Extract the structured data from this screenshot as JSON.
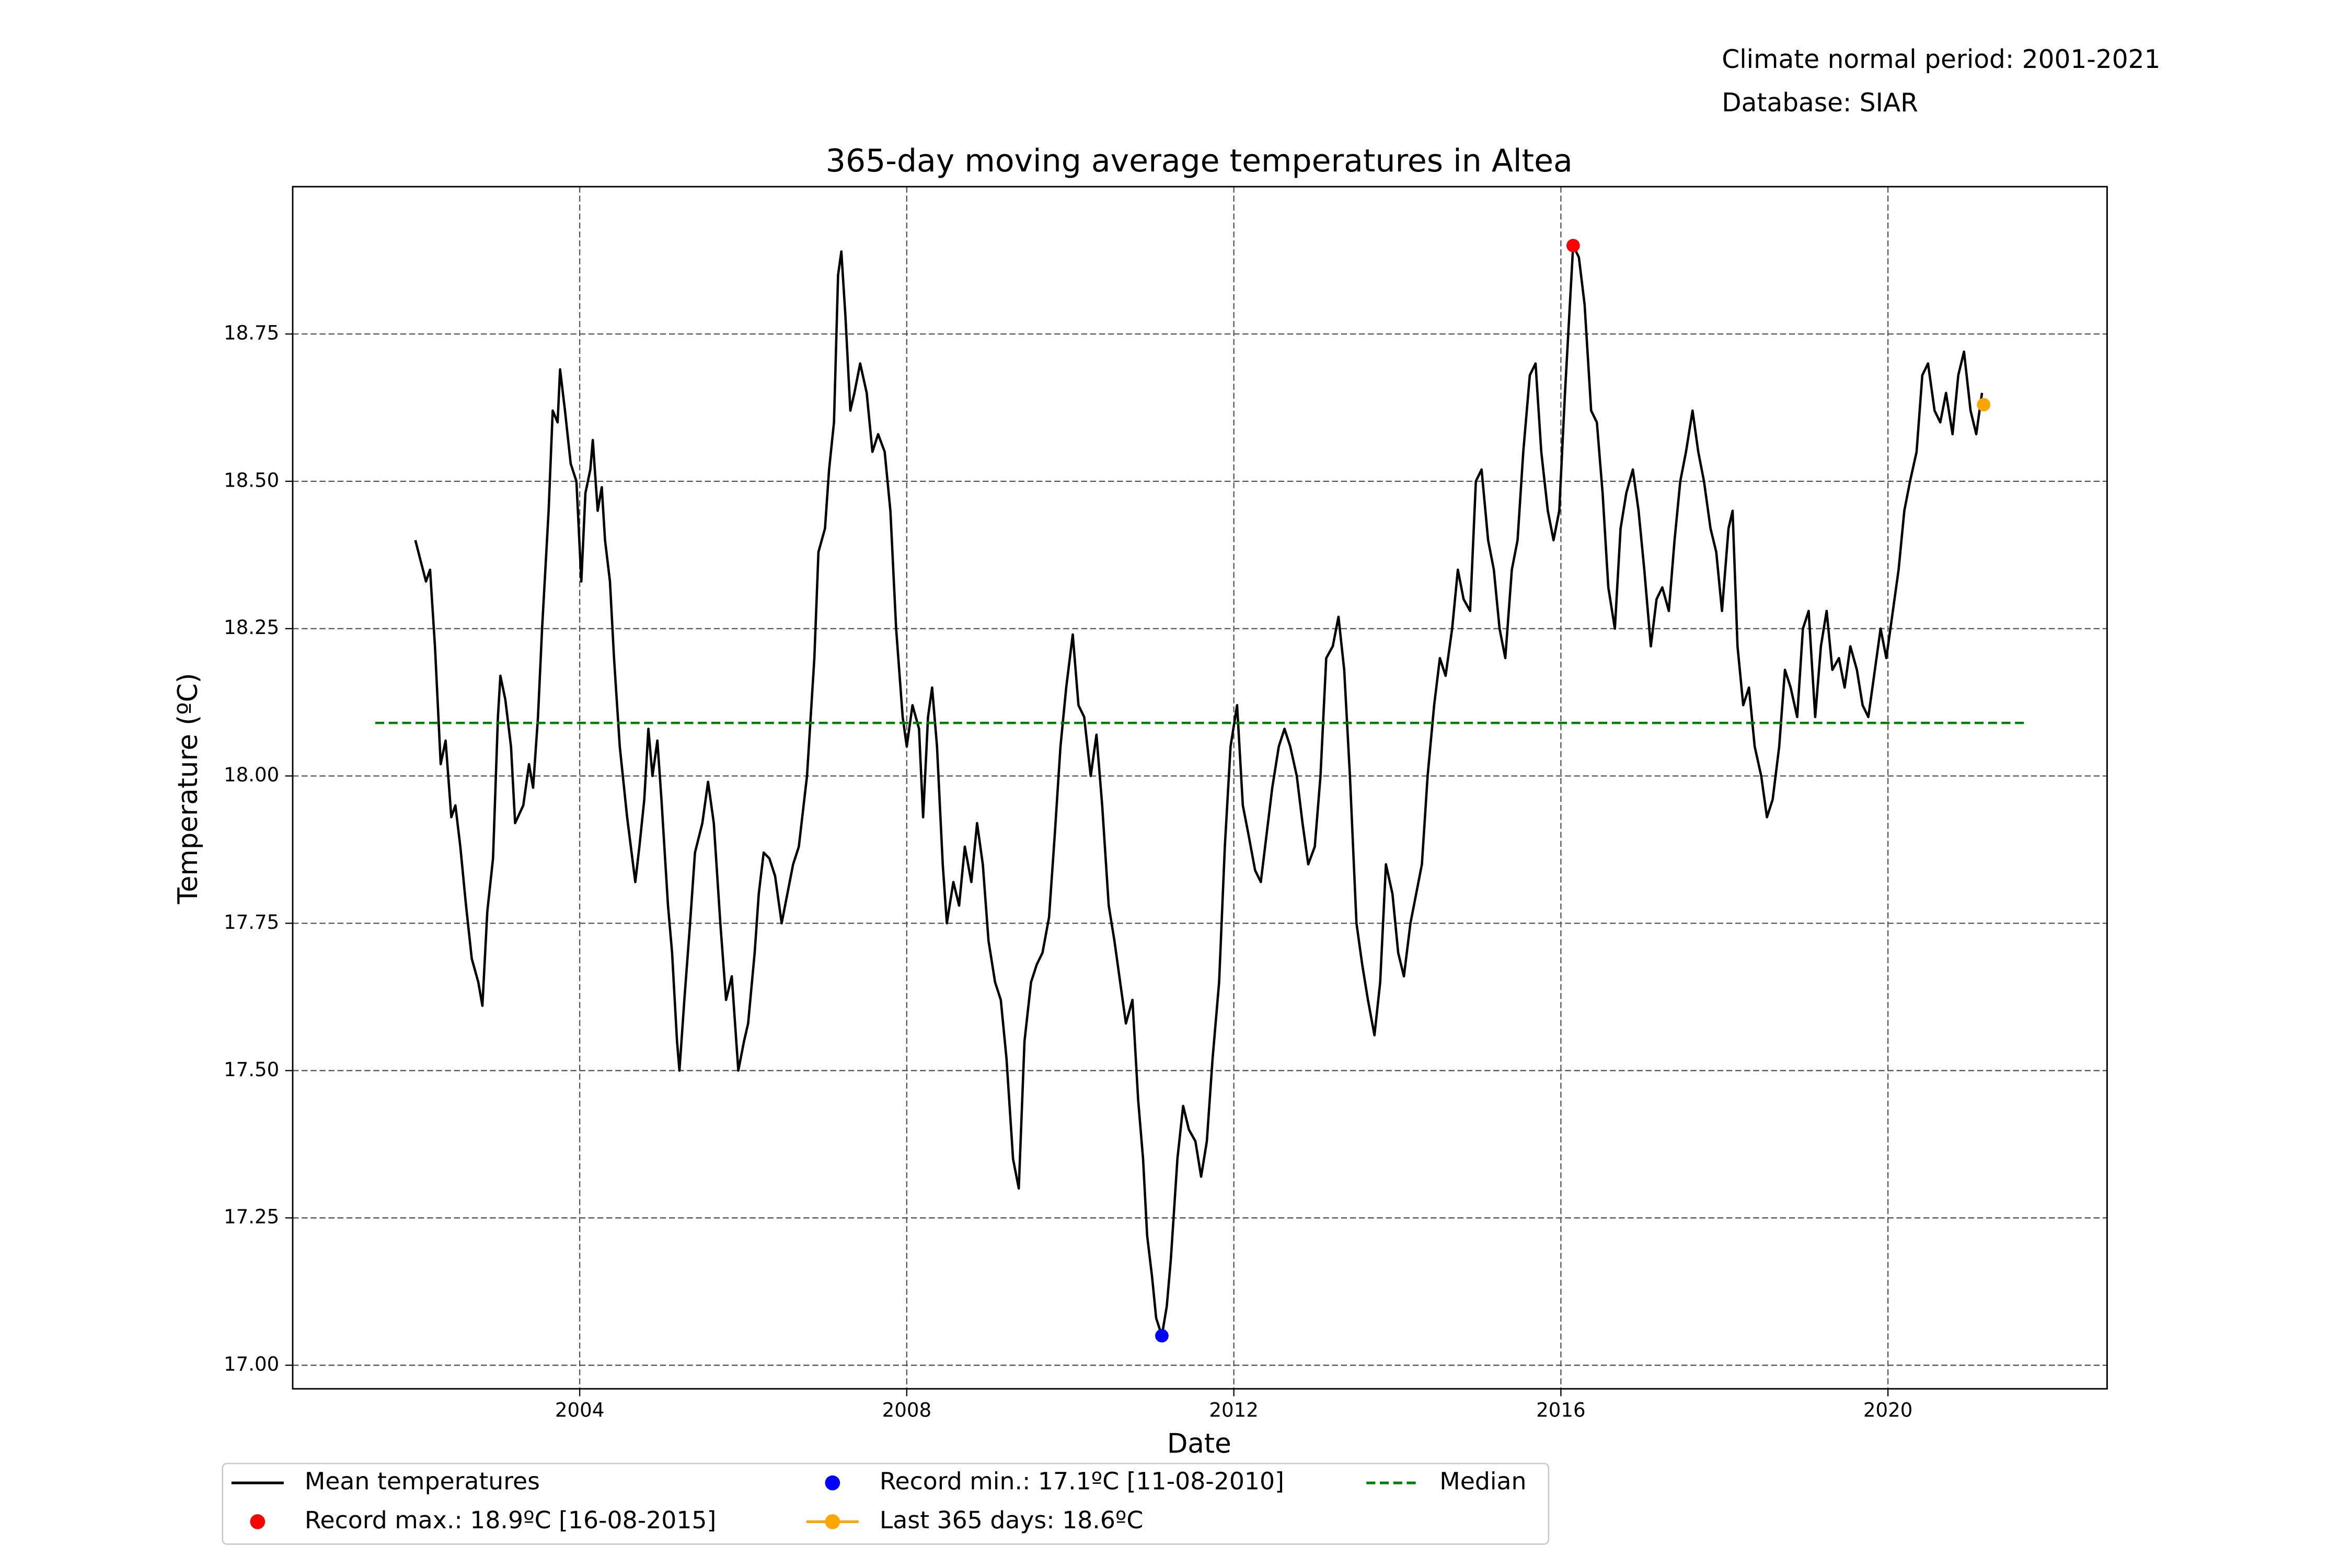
{
  "chart_data": {
    "type": "line",
    "title": "365-day moving average temperatures in Altea",
    "annotations": [
      "Climate normal period: 2001-2021",
      "Database: SIAR"
    ],
    "x_label": "Date",
    "y_label": "Temperature (ºC)",
    "xlim": [
      2000.49,
      2022.68
    ],
    "ylim": [
      16.96,
      19.0
    ],
    "xticks": [
      2004,
      2008,
      2012,
      2016,
      2020
    ],
    "yticks": [
      {
        "value": 17.0,
        "label": "17.00"
      },
      {
        "value": 17.25,
        "label": "17.25"
      },
      {
        "value": 17.5,
        "label": "17.50"
      },
      {
        "value": 17.75,
        "label": "17.75"
      },
      {
        "value": 18.0,
        "label": "18.00"
      },
      {
        "value": 18.25,
        "label": "18.25"
      },
      {
        "value": 18.5,
        "label": "18.50"
      },
      {
        "value": 18.75,
        "label": "18.75"
      }
    ],
    "grid": true,
    "legend": "lower center",
    "legend_ncol": 3,
    "series": [
      {
        "name": "Mean temperatures",
        "color": "#000000",
        "style": "line",
        "x": [
          2001.99,
          2002.12,
          2002.17,
          2002.23,
          2002.3,
          2002.36,
          2002.43,
          2002.48,
          2002.54,
          2002.61,
          2002.68,
          2002.76,
          2002.81,
          2002.87,
          2002.94,
          2003.0,
          2003.03,
          2003.09,
          2003.16,
          2003.21,
          2003.31,
          2003.38,
          2003.43,
          2003.49,
          2003.54,
          2003.62,
          2003.67,
          2003.73,
          2003.76,
          2003.82,
          2003.89,
          2003.96,
          2004.02,
          2004.07,
          2004.13,
          2004.16,
          2004.22,
          2004.27,
          2004.31,
          2004.37,
          2004.42,
          2004.49,
          2004.58,
          2004.68,
          2004.73,
          2004.79,
          2004.84,
          2004.89,
          2004.95,
          2005.0,
          2005.08,
          2005.13,
          2005.19,
          2005.22,
          2005.28,
          2005.35,
          2005.41,
          2005.5,
          2005.57,
          2005.64,
          2005.72,
          2005.79,
          2005.86,
          2005.94,
          2006.01,
          2006.06,
          2006.14,
          2006.19,
          2006.25,
          2006.32,
          2006.39,
          2006.47,
          2006.54,
          2006.61,
          2006.68,
          2006.78,
          2006.87,
          2006.92,
          2007.0,
          2007.05,
          2007.11,
          2007.16,
          2007.2,
          2007.25,
          2007.31,
          2007.36,
          2007.43,
          2007.51,
          2007.58,
          2007.65,
          2007.73,
          2007.8,
          2007.87,
          2007.95,
          2008.0,
          2008.07,
          2008.15,
          2008.2,
          2008.26,
          2008.31,
          2008.37,
          2008.44,
          2008.49,
          2008.57,
          2008.64,
          2008.71,
          2008.79,
          2008.86,
          2008.93,
          2009.0,
          2009.08,
          2009.15,
          2009.22,
          2009.3,
          2009.37,
          2009.44,
          2009.52,
          2009.59,
          2009.66,
          2009.74,
          2009.81,
          2009.88,
          2009.95,
          2010.03,
          2010.1,
          2010.17,
          2010.25,
          2010.32,
          2010.39,
          2010.47,
          2010.54,
          2010.61,
          2010.68,
          2010.76,
          2010.83,
          2010.89,
          2010.94,
          2011.0,
          2011.05,
          2011.12,
          2011.18,
          2011.23,
          2011.31,
          2011.38,
          2011.45,
          2011.53,
          2011.6,
          2011.67,
          2011.74,
          2011.82,
          2011.89,
          2011.96,
          2012.04,
          2012.11,
          2012.18,
          2012.26,
          2012.33,
          2012.4,
          2012.47,
          2012.55,
          2012.62,
          2012.69,
          2012.77,
          2012.84,
          2012.91,
          2012.99,
          2013.06,
          2013.13,
          2013.21,
          2013.28,
          2013.35,
          2013.42,
          2013.5,
          2013.57,
          2013.64,
          2013.72,
          2013.79,
          2013.86,
          2013.94,
          2014.01,
          2014.08,
          2014.16,
          2014.23,
          2014.3,
          2014.37,
          2014.45,
          2014.52,
          2014.59,
          2014.67,
          2014.74,
          2014.81,
          2014.89,
          2014.96,
          2015.03,
          2015.11,
          2015.18,
          2015.25,
          2015.32,
          2015.4,
          2015.47,
          2015.54,
          2015.62,
          2015.69,
          2015.76,
          2015.84,
          2015.91,
          2015.98,
          2016.05,
          2016.11,
          2016.15,
          2016.22,
          2016.29,
          2016.37,
          2016.44,
          2016.51,
          2016.58,
          2016.66,
          2016.73,
          2016.8,
          2016.88,
          2016.95,
          2017.02,
          2017.1,
          2017.17,
          2017.24,
          2017.32,
          2017.39,
          2017.46,
          2017.53,
          2017.61,
          2017.68,
          2017.75,
          2017.83,
          2017.9,
          2017.97,
          2018.05,
          2018.1,
          2018.16,
          2018.23,
          2018.3,
          2018.37,
          2018.45,
          2018.52,
          2018.59,
          2018.67,
          2018.74,
          2018.81,
          2018.89,
          2018.96,
          2019.03,
          2019.11,
          2019.18,
          2019.25,
          2019.32,
          2019.4,
          2019.47,
          2019.54,
          2019.62,
          2019.69,
          2019.76,
          2019.84,
          2019.91,
          2019.98,
          2020.05,
          2020.13,
          2020.2,
          2020.27,
          2020.35,
          2020.42,
          2020.49,
          2020.57,
          2020.64,
          2020.71,
          2020.79,
          2020.86,
          2020.93,
          2021.01,
          2021.08,
          2021.15
        ],
        "values": [
          18.4,
          18.33,
          18.35,
          18.22,
          18.02,
          18.06,
          17.93,
          17.95,
          17.88,
          17.78,
          17.69,
          17.65,
          17.61,
          17.77,
          17.86,
          18.1,
          18.17,
          18.13,
          18.05,
          17.92,
          17.95,
          18.02,
          17.98,
          18.1,
          18.25,
          18.45,
          18.62,
          18.6,
          18.69,
          18.62,
          18.53,
          18.5,
          18.33,
          18.48,
          18.52,
          18.57,
          18.45,
          18.49,
          18.4,
          18.33,
          18.2,
          18.05,
          17.93,
          17.82,
          17.88,
          17.96,
          18.08,
          18.0,
          18.06,
          17.96,
          17.78,
          17.7,
          17.55,
          17.5,
          17.62,
          17.75,
          17.87,
          17.92,
          17.99,
          17.92,
          17.75,
          17.62,
          17.66,
          17.5,
          17.55,
          17.58,
          17.7,
          17.8,
          17.87,
          17.86,
          17.83,
          17.75,
          17.8,
          17.85,
          17.88,
          18.0,
          18.2,
          18.38,
          18.42,
          18.52,
          18.6,
          18.85,
          18.89,
          18.78,
          18.62,
          18.65,
          18.7,
          18.65,
          18.55,
          18.58,
          18.55,
          18.45,
          18.25,
          18.1,
          18.05,
          18.12,
          18.08,
          17.93,
          18.1,
          18.15,
          18.05,
          17.85,
          17.75,
          17.82,
          17.78,
          17.88,
          17.82,
          17.92,
          17.85,
          17.72,
          17.65,
          17.62,
          17.52,
          17.35,
          17.3,
          17.55,
          17.65,
          17.68,
          17.7,
          17.76,
          17.9,
          18.05,
          18.15,
          18.24,
          18.12,
          18.1,
          18.0,
          18.07,
          17.95,
          17.78,
          17.72,
          17.65,
          17.58,
          17.62,
          17.45,
          17.35,
          17.22,
          17.15,
          17.08,
          17.05,
          17.1,
          17.18,
          17.35,
          17.44,
          17.4,
          17.38,
          17.32,
          17.38,
          17.52,
          17.65,
          17.88,
          18.05,
          18.12,
          17.95,
          17.9,
          17.84,
          17.82,
          17.9,
          17.98,
          18.05,
          18.08,
          18.05,
          18.0,
          17.92,
          17.85,
          17.88,
          18.0,
          18.2,
          18.22,
          18.27,
          18.18,
          18.0,
          17.75,
          17.68,
          17.62,
          17.56,
          17.65,
          17.85,
          17.8,
          17.7,
          17.66,
          17.75,
          17.8,
          17.85,
          18.0,
          18.12,
          18.2,
          18.17,
          18.25,
          18.35,
          18.3,
          18.28,
          18.5,
          18.52,
          18.4,
          18.35,
          18.25,
          18.2,
          18.35,
          18.4,
          18.55,
          18.68,
          18.7,
          18.55,
          18.45,
          18.4,
          18.45,
          18.65,
          18.8,
          18.9,
          18.88,
          18.8,
          18.62,
          18.6,
          18.48,
          18.32,
          18.25,
          18.42,
          18.48,
          18.52,
          18.45,
          18.35,
          18.22,
          18.3,
          18.32,
          18.28,
          18.4,
          18.5,
          18.55,
          18.62,
          18.55,
          18.5,
          18.42,
          18.38,
          18.28,
          18.42,
          18.45,
          18.22,
          18.12,
          18.15,
          18.05,
          18.0,
          17.93,
          17.96,
          18.05,
          18.18,
          18.15,
          18.1,
          18.25,
          18.28,
          18.1,
          18.22,
          18.28,
          18.18,
          18.2,
          18.15,
          18.22,
          18.18,
          18.12,
          18.1,
          18.18,
          18.25,
          18.2,
          18.27,
          18.35,
          18.45,
          18.5,
          18.55,
          18.68,
          18.7,
          18.62,
          18.6,
          18.65,
          18.58,
          18.68,
          18.72,
          18.62,
          18.58,
          18.65
        ]
      },
      {
        "name": "Record max.: 18.9ºC [16-08-2015]",
        "color": "#ff0000",
        "style": "marker",
        "x": [
          2016.15
        ],
        "values": [
          18.9
        ]
      },
      {
        "name": "Record min.: 17.1ºC [11-08-2010]",
        "color": "#0000ff",
        "style": "marker",
        "x": [
          2011.12
        ],
        "values": [
          17.05
        ]
      },
      {
        "name": "Last 365 days: 18.6ºC",
        "color": "#ffa500",
        "style": "line+marker",
        "x": [
          2021.17
        ],
        "values": [
          18.63
        ]
      },
      {
        "name": "Median",
        "color": "#008000",
        "style": "dashed",
        "x": [
          2001.5,
          2021.68
        ],
        "values": [
          18.09,
          18.09
        ]
      }
    ]
  }
}
